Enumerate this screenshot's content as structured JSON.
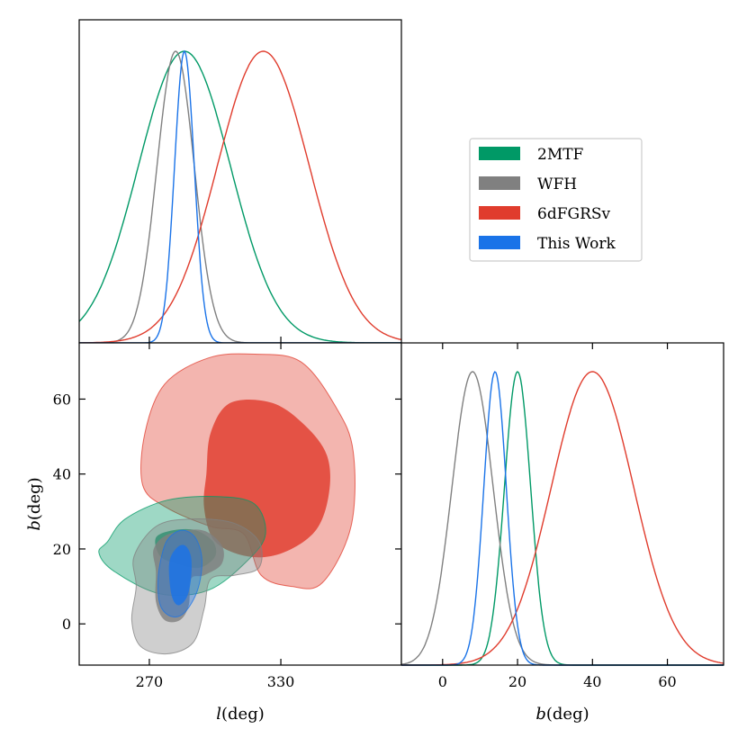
{
  "chart_data": {
    "type": "corner",
    "legend": {
      "placement": "upper-right (top-right empty cell)",
      "entries": [
        {
          "name": "2MTF",
          "color": "#009966"
        },
        {
          "name": "WFH",
          "color": "#808080"
        },
        {
          "name": "6dFGRSv",
          "color": "#e03c2d"
        },
        {
          "name": "This Work",
          "color": "#1a73e8"
        }
      ]
    },
    "series": [
      {
        "name": "2MTF",
        "color": "#009966",
        "l": {
          "mean": 286,
          "sigma": 21
        },
        "b": {
          "mean": 20,
          "sigma": 3.5
        },
        "contour_1sigma": [
          [
            273,
            23
          ],
          [
            281,
            25
          ],
          [
            291,
            25
          ],
          [
            299,
            22
          ],
          [
            300,
            18
          ],
          [
            293,
            15
          ],
          [
            283,
            16
          ],
          [
            275,
            18
          ]
        ],
        "contour_2sigma": [
          [
            251,
            22
          ],
          [
            259,
            28
          ],
          [
            278,
            33
          ],
          [
            301,
            34
          ],
          [
            318,
            32
          ],
          [
            323,
            24
          ],
          [
            315,
            17
          ],
          [
            297,
            9
          ],
          [
            275,
            8
          ],
          [
            254,
            14
          ],
          [
            247,
            19
          ]
        ]
      },
      {
        "name": "WFH",
        "color": "#808080",
        "l": {
          "mean": 282,
          "sigma": 8.5
        },
        "b": {
          "mean": 8,
          "sigma": 5.5
        },
        "contour_1sigma": [
          [
            272,
            20
          ],
          [
            279,
            24
          ],
          [
            294,
            25
          ],
          [
            303,
            21
          ],
          [
            303,
            16
          ],
          [
            295,
            13
          ],
          [
            289,
            12
          ],
          [
            288,
            5
          ],
          [
            284,
            1
          ],
          [
            277,
            1
          ],
          [
            273,
            6
          ],
          [
            273,
            14
          ]
        ],
        "contour_2sigma": [
          [
            263,
            18
          ],
          [
            273,
            26
          ],
          [
            288,
            28
          ],
          [
            308,
            27
          ],
          [
            320,
            22
          ],
          [
            320,
            15
          ],
          [
            309,
            13
          ],
          [
            298,
            12
          ],
          [
            295,
            4
          ],
          [
            290,
            -5
          ],
          [
            278,
            -8
          ],
          [
            266,
            -6
          ],
          [
            262,
            1
          ],
          [
            264,
            10
          ]
        ]
      },
      {
        "name": "6dFGRSv",
        "color": "#e03c2d",
        "l": {
          "mean": 322,
          "sigma": 21
        },
        "b": {
          "mean": 40,
          "sigma": 11
        },
        "contour_1sigma": [
          [
            296,
            40
          ],
          [
            298,
            51
          ],
          [
            307,
            59
          ],
          [
            326,
            59
          ],
          [
            341,
            53
          ],
          [
            351,
            45
          ],
          [
            352,
            35
          ],
          [
            346,
            25
          ],
          [
            331,
            19
          ],
          [
            315,
            18
          ],
          [
            300,
            22
          ],
          [
            295,
            31
          ]
        ],
        "contour_2sigma": [
          [
            268,
            51
          ],
          [
            277,
            64
          ],
          [
            297,
            71
          ],
          [
            318,
            72
          ],
          [
            339,
            70
          ],
          [
            355,
            58
          ],
          [
            363,
            46
          ],
          [
            362,
            26
          ],
          [
            349,
            11
          ],
          [
            335,
            10
          ],
          [
            321,
            13
          ],
          [
            313,
            24
          ],
          [
            298,
            26
          ],
          [
            278,
            31
          ],
          [
            267,
            37
          ]
        ]
      },
      {
        "name": "This Work",
        "color": "#1a73e8",
        "l": {
          "mean": 286,
          "sigma": 4.5
        },
        "b": {
          "mean": 14,
          "sigma": 3
        }
      },
      {
        "name": "This Work (contours)",
        "color": "#1a73e8",
        "contour_1sigma": [
          [
            279,
            16
          ],
          [
            282,
            20
          ],
          [
            286,
            21
          ],
          [
            289,
            18
          ],
          [
            289,
            12
          ],
          [
            287,
            7
          ],
          [
            283,
            5
          ],
          [
            280,
            8
          ]
        ],
        "contour_2sigma": [
          [
            276,
            19
          ],
          [
            279,
            23
          ],
          [
            285,
            25
          ],
          [
            291,
            23
          ],
          [
            294,
            17
          ],
          [
            292,
            9
          ],
          [
            286,
            3
          ],
          [
            280,
            2
          ],
          [
            275,
            5
          ],
          [
            274,
            12
          ]
        ]
      }
    ],
    "axes": {
      "l": {
        "label": "l(deg)",
        "range": [
          238,
          385
        ],
        "ticks": [
          270,
          330
        ]
      },
      "b": {
        "label": "b(deg)",
        "range": [
          -11,
          75
        ],
        "ticks": [
          0,
          20,
          40,
          60
        ]
      }
    }
  }
}
